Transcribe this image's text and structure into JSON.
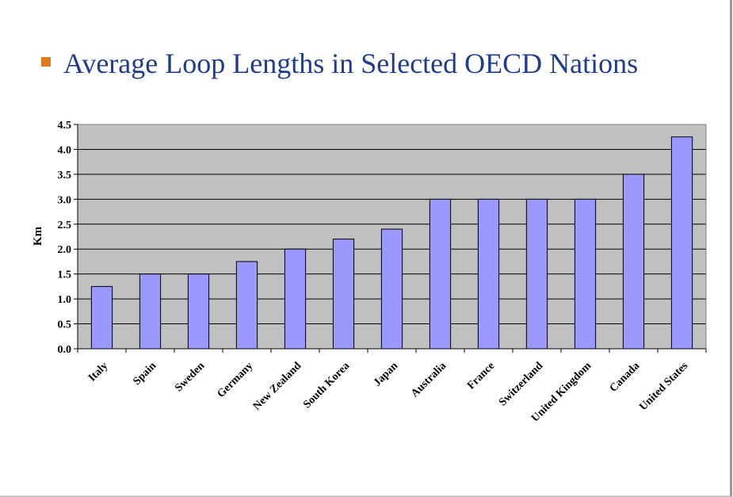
{
  "slide": {
    "title": "Average Loop Lengths in Selected OECD Nations",
    "bullet_color": "#e07a1f",
    "title_color": "#1f3c8f"
  },
  "chart_data": {
    "type": "bar",
    "title": "",
    "xlabel": "",
    "ylabel": "Km",
    "categories": [
      "Italy",
      "Spain",
      "Sweden",
      "Germany",
      "New Zealand",
      "South Korea",
      "Japan",
      "Australia",
      "France",
      "Switzerland",
      "United Kingdom",
      "Canada",
      "United States"
    ],
    "values": [
      1.25,
      1.5,
      1.5,
      1.75,
      2.0,
      2.2,
      2.4,
      3.0,
      3.0,
      3.0,
      3.0,
      3.5,
      4.25
    ],
    "ylim": [
      0,
      4.5
    ],
    "yticks": [
      "0.0",
      "0.5",
      "1.0",
      "1.5",
      "2.0",
      "2.5",
      "3.0",
      "3.5",
      "4.0",
      "4.5"
    ],
    "grid": true,
    "colors": {
      "bar": "#9999ff",
      "plot_bg": "#c0c0c0",
      "grid": "#000000"
    }
  }
}
